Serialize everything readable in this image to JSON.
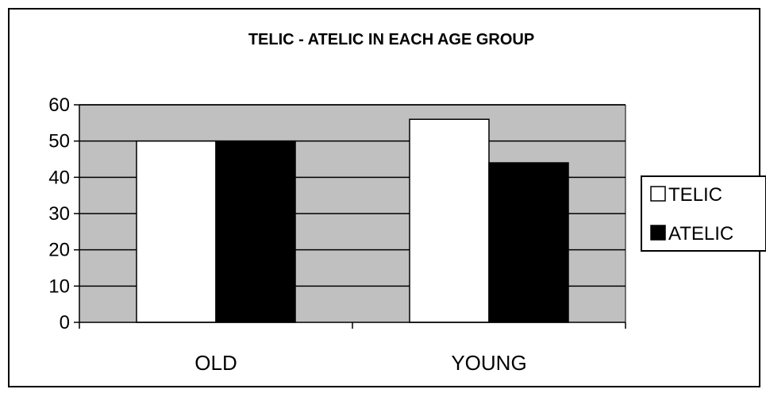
{
  "chart_data": {
    "type": "bar",
    "title": "TELIC - ATELIC IN EACH AGE GROUP",
    "xlabel": "",
    "ylabel": "",
    "categories": [
      "OLD",
      "YOUNG"
    ],
    "series": [
      {
        "name": "TELIC",
        "values": [
          50,
          56
        ],
        "color": "#ffffff"
      },
      {
        "name": "ATELIC",
        "values": [
          50,
          44
        ],
        "color": "#000000"
      }
    ],
    "ylim": [
      0,
      60
    ],
    "yticks": [
      "0",
      "10",
      "20",
      "30",
      "40",
      "50",
      "60"
    ],
    "grid": true,
    "plot_background": "#c0c0c0",
    "legend_position": "right"
  }
}
